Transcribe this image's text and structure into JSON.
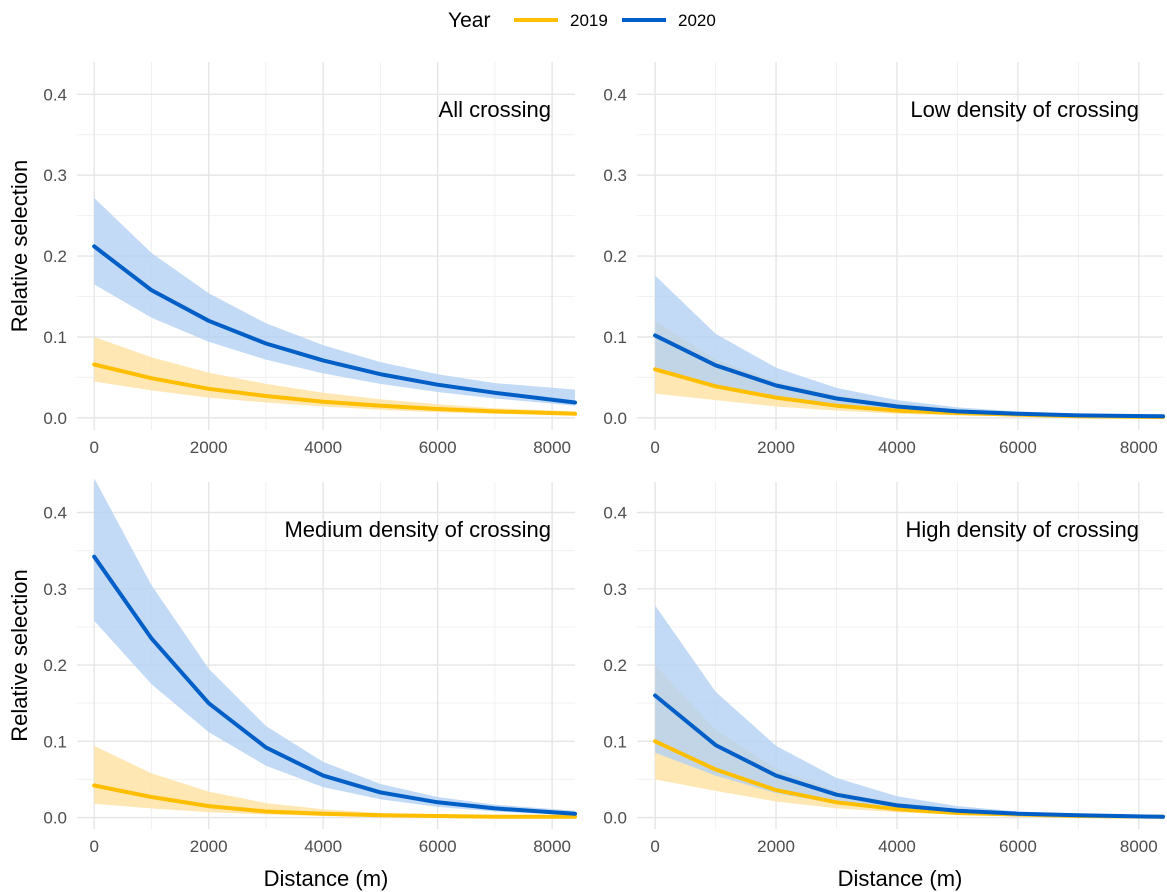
{
  "legend": {
    "title": "Year",
    "entries": [
      {
        "label": "2019",
        "color": "#FFBE00"
      },
      {
        "label": "2020",
        "color": "#005EC7"
      }
    ]
  },
  "colors": {
    "line_2019": "#FFBE00",
    "band_2019": "#FFE3A6",
    "line_2020": "#005EC7",
    "band_2020": "#B3D1F2",
    "grid_major": "#e5e5e5",
    "grid_minor": "#f0f0f0"
  },
  "chart_data": [
    {
      "type": "line",
      "panel_title": "All crossing",
      "xlabel": "",
      "ylabel": "Relative selection",
      "xlim": [
        -300,
        8400
      ],
      "ylim": [
        -0.015,
        0.44
      ],
      "x_ticks": [
        0,
        2000,
        4000,
        6000,
        8000
      ],
      "y_ticks": [
        0.0,
        0.1,
        0.2,
        0.3,
        0.4
      ],
      "grid": true,
      "series": [
        {
          "name": "2019",
          "x": [
            0,
            1000,
            2000,
            3000,
            4000,
            5000,
            6000,
            7000,
            8400
          ],
          "values": [
            0.066,
            0.049,
            0.036,
            0.027,
            0.02,
            0.015,
            0.011,
            0.008,
            0.005
          ],
          "lower": [
            0.045,
            0.034,
            0.025,
            0.019,
            0.014,
            0.01,
            0.007,
            0.005,
            0.003
          ],
          "upper": [
            0.1,
            0.075,
            0.056,
            0.042,
            0.031,
            0.023,
            0.017,
            0.012,
            0.008
          ]
        },
        {
          "name": "2020",
          "x": [
            0,
            1000,
            2000,
            3000,
            4000,
            5000,
            6000,
            7000,
            8400
          ],
          "values": [
            0.212,
            0.158,
            0.12,
            0.092,
            0.071,
            0.054,
            0.041,
            0.031,
            0.019
          ],
          "lower": [
            0.165,
            0.124,
            0.094,
            0.072,
            0.055,
            0.042,
            0.032,
            0.024,
            0.015
          ],
          "upper": [
            0.272,
            0.204,
            0.154,
            0.117,
            0.09,
            0.069,
            0.054,
            0.043,
            0.035
          ]
        }
      ]
    },
    {
      "type": "line",
      "panel_title": "Low density of crossing",
      "xlabel": "",
      "ylabel": "",
      "xlim": [
        -300,
        8400
      ],
      "ylim": [
        -0.015,
        0.44
      ],
      "x_ticks": [
        0,
        2000,
        4000,
        6000,
        8000
      ],
      "y_ticks": [
        0.0,
        0.1,
        0.2,
        0.3,
        0.4
      ],
      "grid": true,
      "series": [
        {
          "name": "2019",
          "x": [
            0,
            1000,
            2000,
            3000,
            4000,
            5000,
            6000,
            7000,
            8400
          ],
          "values": [
            0.06,
            0.039,
            0.025,
            0.015,
            0.009,
            0.006,
            0.004,
            0.002,
            0.001
          ],
          "lower": [
            0.03,
            0.022,
            0.014,
            0.009,
            0.005,
            0.003,
            0.002,
            0.001,
            0.0
          ],
          "upper": [
            0.12,
            0.072,
            0.045,
            0.028,
            0.018,
            0.011,
            0.007,
            0.004,
            0.003
          ]
        },
        {
          "name": "2020",
          "x": [
            0,
            1000,
            2000,
            3000,
            4000,
            5000,
            6000,
            7000,
            8400
          ],
          "values": [
            0.102,
            0.065,
            0.04,
            0.024,
            0.014,
            0.008,
            0.005,
            0.003,
            0.002
          ],
          "lower": [
            0.06,
            0.04,
            0.025,
            0.015,
            0.009,
            0.005,
            0.003,
            0.002,
            0.001
          ],
          "upper": [
            0.176,
            0.104,
            0.062,
            0.037,
            0.022,
            0.013,
            0.008,
            0.005,
            0.003
          ]
        }
      ]
    },
    {
      "type": "line",
      "panel_title": "Medium density of crossing",
      "xlabel": "Distance (m)",
      "ylabel": "Relative selection",
      "xlim": [
        -300,
        8400
      ],
      "ylim": [
        -0.015,
        0.44
      ],
      "x_ticks": [
        0,
        2000,
        4000,
        6000,
        8000
      ],
      "y_ticks": [
        0.0,
        0.1,
        0.2,
        0.3,
        0.4
      ],
      "grid": true,
      "series": [
        {
          "name": "2019",
          "x": [
            0,
            1000,
            2000,
            3000,
            4000,
            5000,
            6000,
            7000,
            8400
          ],
          "values": [
            0.042,
            0.027,
            0.015,
            0.008,
            0.005,
            0.003,
            0.002,
            0.001,
            0.001
          ],
          "lower": [
            0.018,
            0.012,
            0.007,
            0.004,
            0.002,
            0.001,
            0.001,
            0.0,
            0.0
          ],
          "upper": [
            0.094,
            0.058,
            0.034,
            0.019,
            0.011,
            0.006,
            0.004,
            0.002,
            0.001
          ]
        },
        {
          "name": "2020",
          "x": [
            0,
            1000,
            2000,
            3000,
            4000,
            5000,
            6000,
            7000,
            8400
          ],
          "values": [
            0.342,
            0.235,
            0.15,
            0.092,
            0.055,
            0.033,
            0.02,
            0.012,
            0.005
          ],
          "lower": [
            0.258,
            0.175,
            0.112,
            0.068,
            0.04,
            0.024,
            0.014,
            0.008,
            0.003
          ],
          "upper": [
            0.445,
            0.305,
            0.195,
            0.12,
            0.073,
            0.044,
            0.027,
            0.017,
            0.009
          ]
        }
      ]
    },
    {
      "type": "line",
      "panel_title": "High density of crossing",
      "xlabel": "Distance (m)",
      "ylabel": "",
      "xlim": [
        -300,
        8400
      ],
      "ylim": [
        -0.015,
        0.44
      ],
      "x_ticks": [
        0,
        2000,
        4000,
        6000,
        8000
      ],
      "y_ticks": [
        0.0,
        0.1,
        0.2,
        0.3,
        0.4
      ],
      "grid": true,
      "series": [
        {
          "name": "2019",
          "x": [
            0,
            1000,
            2000,
            3000,
            4000,
            5000,
            6000,
            7000,
            8400
          ],
          "values": [
            0.1,
            0.063,
            0.036,
            0.02,
            0.011,
            0.006,
            0.004,
            0.002,
            0.001
          ],
          "lower": [
            0.05,
            0.035,
            0.021,
            0.012,
            0.007,
            0.004,
            0.002,
            0.001,
            0.0
          ],
          "upper": [
            0.2,
            0.115,
            0.064,
            0.035,
            0.019,
            0.011,
            0.006,
            0.003,
            0.002
          ]
        },
        {
          "name": "2020",
          "x": [
            0,
            1000,
            2000,
            3000,
            4000,
            5000,
            6000,
            7000,
            8400
          ],
          "values": [
            0.16,
            0.095,
            0.055,
            0.03,
            0.016,
            0.009,
            0.005,
            0.003,
            0.001
          ],
          "lower": [
            0.085,
            0.055,
            0.032,
            0.018,
            0.01,
            0.005,
            0.003,
            0.002,
            0.001
          ],
          "upper": [
            0.278,
            0.165,
            0.094,
            0.052,
            0.028,
            0.015,
            0.008,
            0.005,
            0.002
          ]
        }
      ]
    }
  ]
}
